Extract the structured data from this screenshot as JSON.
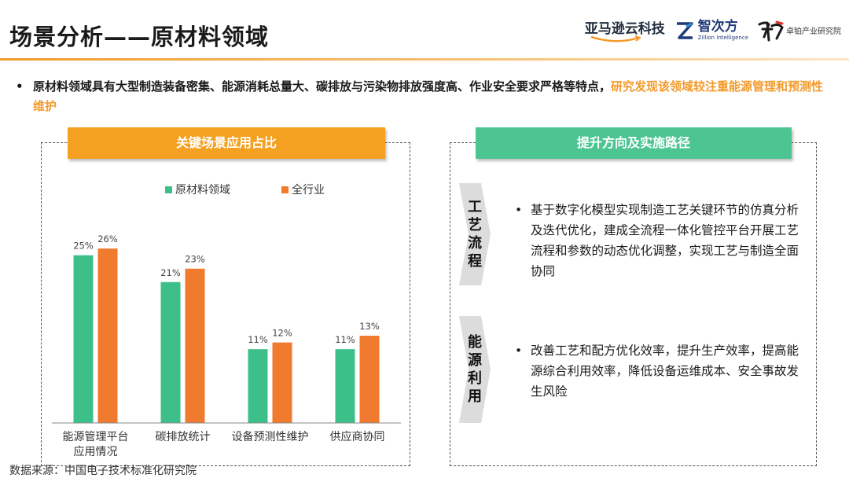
{
  "title": "场景分析——原材料领域",
  "logos": {
    "amazon": "亚马逊云科技",
    "zhicifang_cn": "智次方",
    "zhicifang_en": "Zillion Intelligence",
    "zhuogang_mark": "物",
    "zhuogang_text": "卓铂产业研究院"
  },
  "intro": {
    "bullet": "•",
    "text": "原材料领域具有大型制造装备密集、能源消耗总量大、碳排放与污染物排放强度高、作业安全要求严格等特点，",
    "highlight": "研究发现该领域较注重能源管理和预测性维护"
  },
  "left_banner": "关键场景应用占比",
  "right_banner": "提升方向及实施路径",
  "chart_data": {
    "type": "bar",
    "categories": [
      [
        "能源管理平台",
        "应用情况"
      ],
      [
        "碳排放统计"
      ],
      [
        "设备预测性维护"
      ],
      [
        "供应商协同"
      ]
    ],
    "series": [
      {
        "name": "原材料领域",
        "values": [
          25,
          21,
          11,
          11
        ],
        "labels": [
          "25%",
          "21%",
          "11%",
          "11%"
        ],
        "color": "#3dbf8a"
      },
      {
        "name": "全行业",
        "values": [
          26,
          23,
          12,
          13
        ],
        "labels": [
          "26%",
          "23%",
          "12%",
          "13%"
        ],
        "color": "#f07a2e"
      }
    ],
    "ylim": [
      0,
      30
    ],
    "legend_position": "top",
    "grid": false
  },
  "directions": [
    {
      "tab": "工艺流程",
      "bullet": "•",
      "text": "基于数字化模型实现制造工艺关键环节的仿真分析及迭代优化，建成全流程一体化管控平台开展工艺流程和参数的动态优化调整，实现工艺与制造全面协同"
    },
    {
      "tab": "能源利用",
      "bullet": "•",
      "text": "改善工艺和配方优化效率，提升生产效率，提高能源综合利用效率，降低设备运维成本、安全事故发生风险"
    }
  ],
  "source": "数据来源：中国电子技术标准化研究院",
  "colors": {
    "accent": "#f39a2a",
    "green": "#4cc592",
    "tab_gray": "#dcdcdc"
  }
}
